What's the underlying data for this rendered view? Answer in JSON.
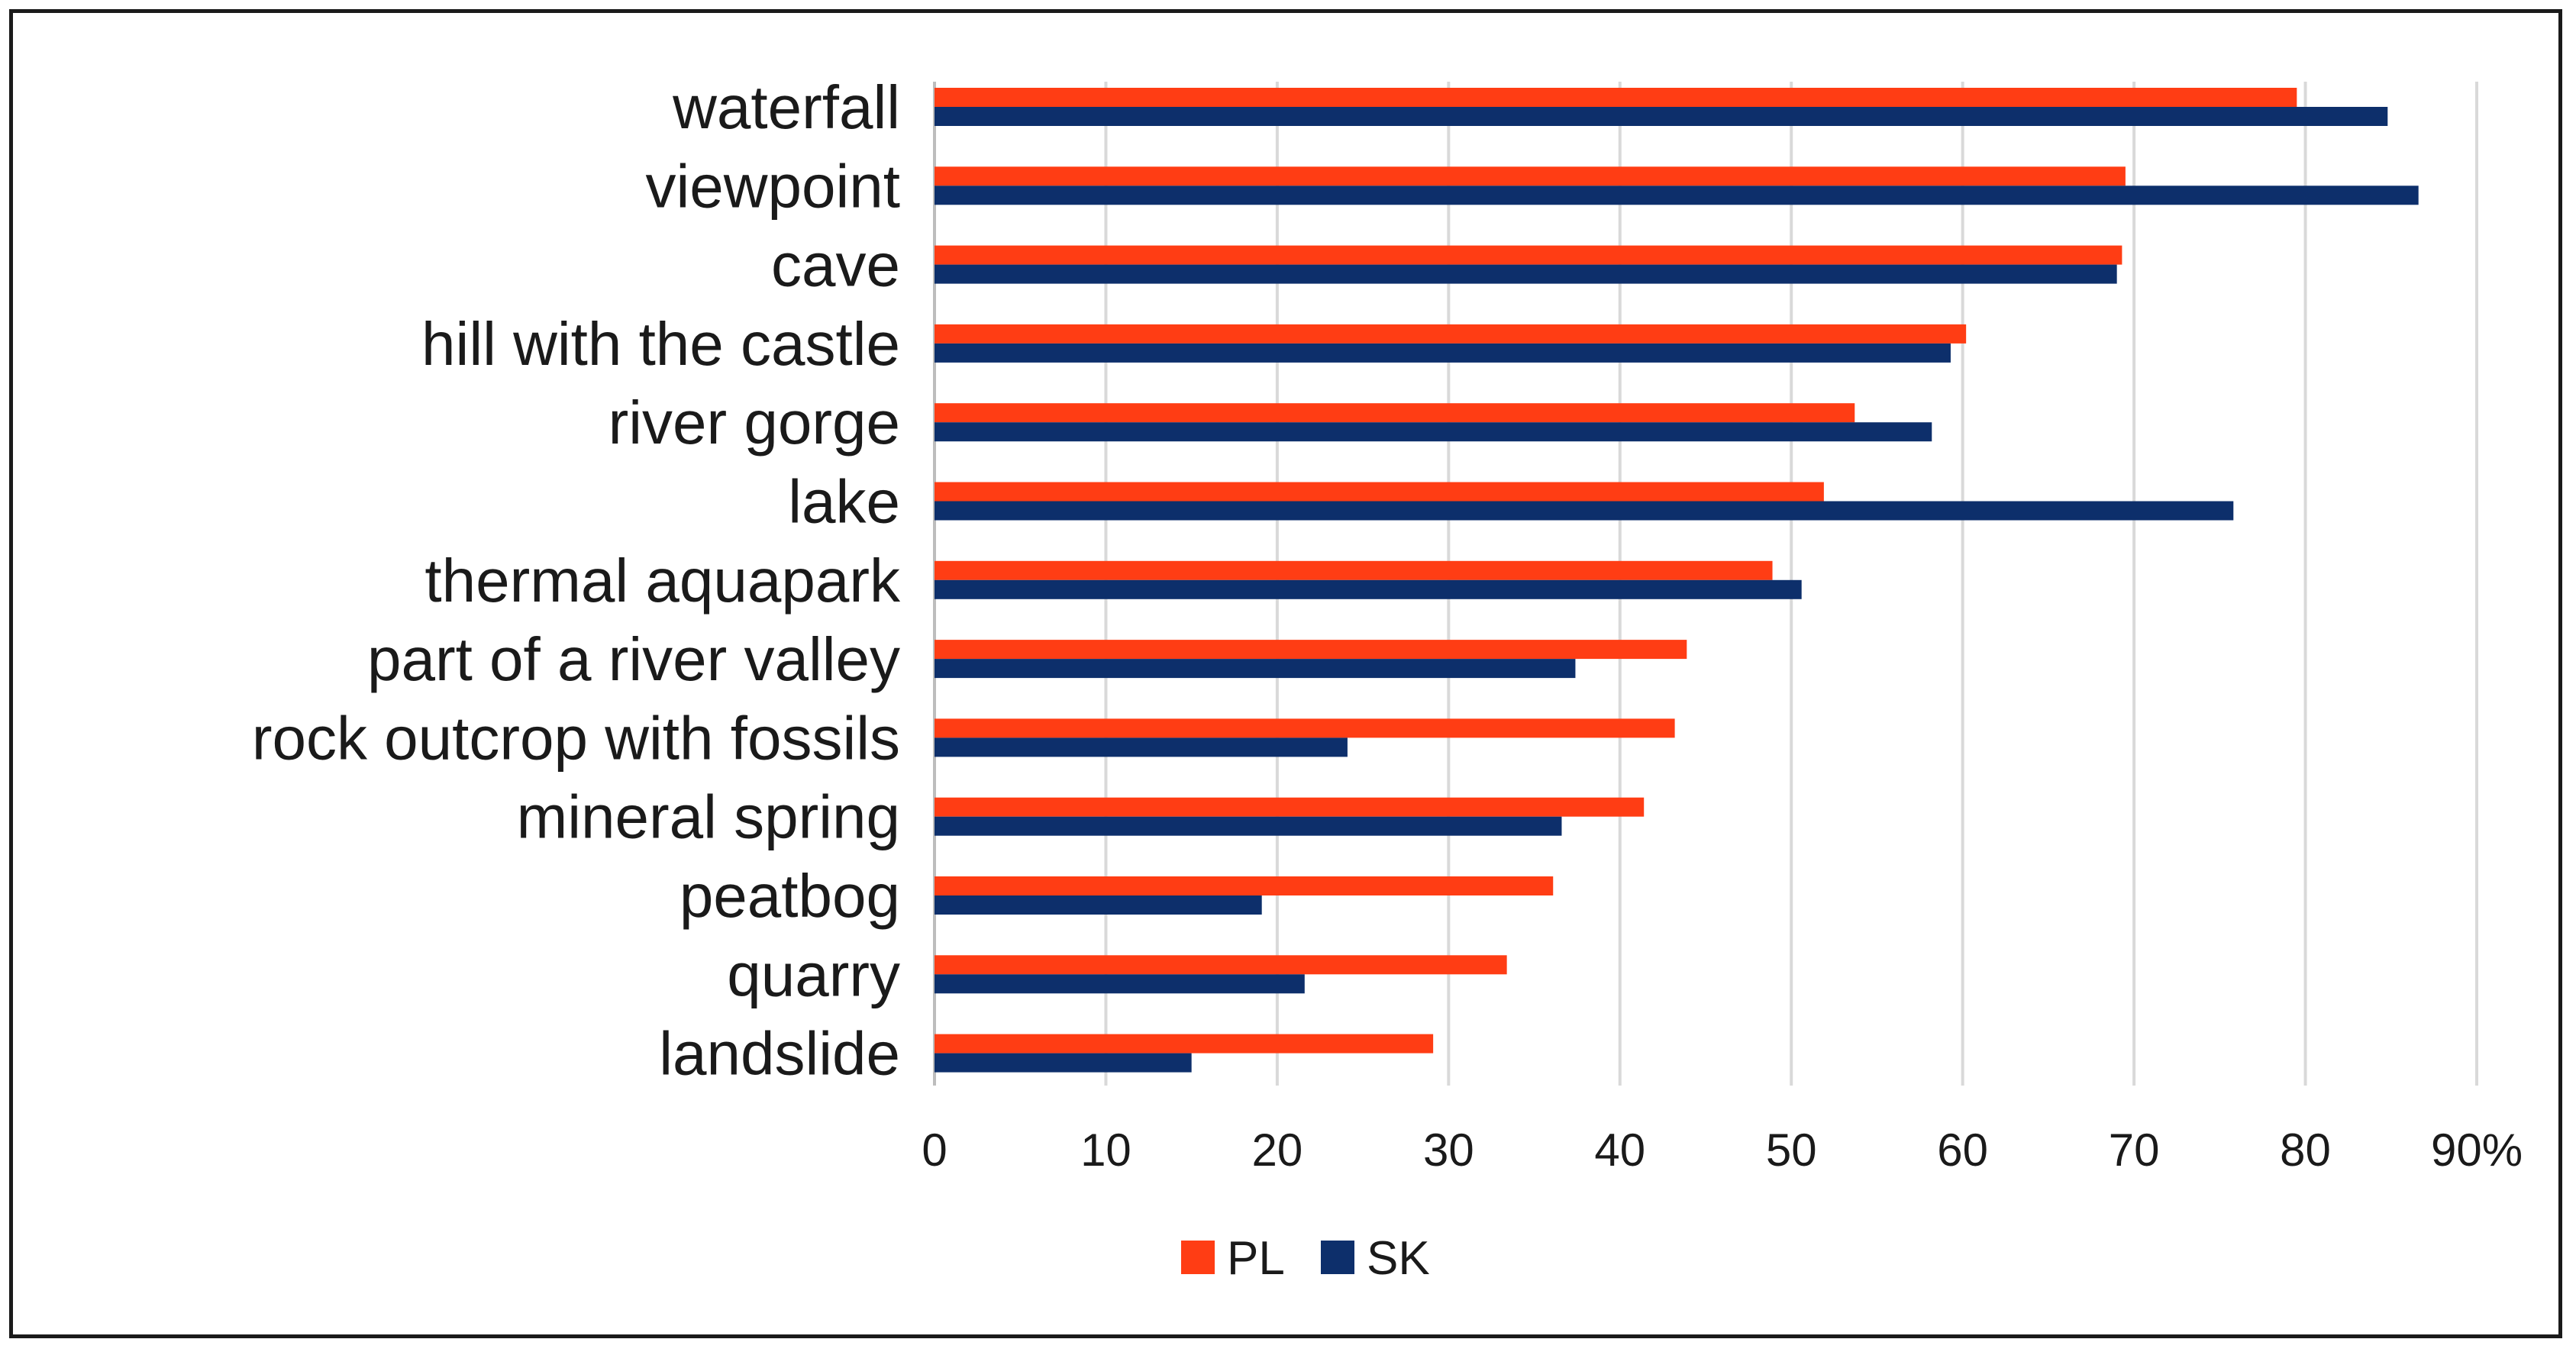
{
  "chart_data": {
    "type": "bar",
    "orientation": "horizontal",
    "categories": [
      "waterfall",
      "viewpoint",
      "cave",
      "hill with the castle",
      "river gorge",
      "lake",
      "thermal aquapark",
      "part of a river valley",
      "rock outcrop with fossils",
      "mineral spring",
      "peatbog",
      "quarry",
      "landslide"
    ],
    "series": [
      {
        "name": "PL",
        "color": "#ff3d14",
        "values": [
          79.5,
          69.5,
          69.3,
          60.2,
          53.7,
          51.9,
          48.9,
          43.9,
          43.2,
          41.4,
          36.1,
          33.4,
          29.1
        ]
      },
      {
        "name": "SK",
        "color": "#0d2f6b",
        "values": [
          84.8,
          86.6,
          69.0,
          59.3,
          58.2,
          75.8,
          50.6,
          37.4,
          24.1,
          36.6,
          19.1,
          21.6,
          15.0
        ]
      }
    ],
    "xlim": [
      0,
      90
    ],
    "xticks": [
      0,
      10,
      20,
      30,
      40,
      50,
      60,
      70,
      80,
      90
    ],
    "xtick_labels": [
      "0",
      "10",
      "20",
      "30",
      "40",
      "50",
      "60",
      "70",
      "80",
      "90%"
    ],
    "grid": "vertical",
    "legend": "bottom-center",
    "title": "",
    "xlabel": "",
    "ylabel": ""
  }
}
